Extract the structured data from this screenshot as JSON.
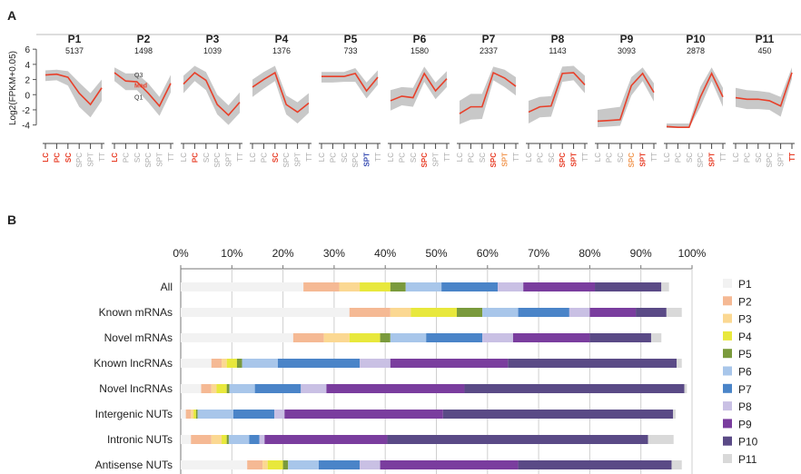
{
  "chart_data": [
    {
      "type": "line",
      "panel_label": "A",
      "ylabel": "Log2(FPKM+0.05)",
      "yticks": [
        "6",
        "4",
        "2",
        "0",
        "-2",
        "-4"
      ],
      "ylim": [
        -5,
        6.5
      ],
      "x": [
        "LC",
        "PC",
        "SC",
        "SPC",
        "SPT",
        "TT"
      ],
      "quartile_labels": [
        "Q3",
        "Med",
        "Q1"
      ],
      "panels": [
        {
          "name": "P1",
          "count": "5137",
          "median": [
            2.6,
            2.7,
            2.3,
            0.2,
            -1.3,
            0.9
          ],
          "q1": [
            1.8,
            1.9,
            1.2,
            -1.6,
            -3.0,
            -0.8
          ],
          "q3": [
            3.2,
            3.3,
            3.1,
            1.6,
            0.2,
            2.0
          ],
          "highlight": [
            {
              "label": "LC",
              "color": "#e8402a"
            },
            {
              "label": "PC",
              "color": "#e8402a"
            },
            {
              "label": "SC",
              "color": "#e8402a"
            }
          ]
        },
        {
          "name": "P2",
          "count": "1498",
          "median": [
            2.9,
            1.8,
            1.7,
            0.2,
            -1.5,
            1.5
          ],
          "q1": [
            1.8,
            0.6,
            0.6,
            -1.0,
            -2.8,
            0.3
          ],
          "q3": [
            3.6,
            2.8,
            2.8,
            1.5,
            -0.3,
            2.6
          ],
          "highlight": [
            {
              "label": "LC",
              "color": "#e8402a"
            }
          ]
        },
        {
          "name": "P3",
          "count": "1039",
          "median": [
            1.4,
            2.9,
            1.9,
            -1.3,
            -2.7,
            -1.0
          ],
          "q1": [
            0.2,
            1.8,
            0.6,
            -2.6,
            -4.0,
            -2.4
          ],
          "q3": [
            2.5,
            3.8,
            3.0,
            0.0,
            -1.4,
            0.3
          ],
          "highlight": [
            {
              "label": "PC",
              "color": "#e8402a"
            }
          ]
        },
        {
          "name": "P4",
          "count": "1376",
          "median": [
            1.0,
            2.0,
            2.9,
            -1.3,
            -2.3,
            -1.1
          ],
          "q1": [
            -0.3,
            0.8,
            1.8,
            -2.6,
            -3.8,
            -2.4
          ],
          "q3": [
            2.0,
            3.0,
            3.8,
            -0.1,
            -1.0,
            0.2
          ],
          "highlight": [
            {
              "label": "SC",
              "color": "#e8402a"
            }
          ]
        },
        {
          "name": "P5",
          "count": "733",
          "median": [
            2.4,
            2.4,
            2.4,
            2.8,
            0.5,
            2.3
          ],
          "q1": [
            1.6,
            1.6,
            1.7,
            1.7,
            -0.5,
            1.3
          ],
          "q3": [
            3.0,
            3.0,
            3.0,
            3.5,
            1.6,
            3.2
          ],
          "highlight": [
            {
              "label": "SPT",
              "color": "#3a4fb3"
            }
          ]
        },
        {
          "name": "P6",
          "count": "1580",
          "median": [
            -0.8,
            -0.2,
            -0.4,
            2.8,
            0.5,
            2.1
          ],
          "q1": [
            -2.1,
            -1.4,
            -1.6,
            1.7,
            -0.6,
            1.0
          ],
          "q3": [
            0.6,
            1.0,
            0.9,
            3.7,
            1.6,
            3.1
          ],
          "highlight": [
            {
              "label": "SPC",
              "color": "#e8402a"
            }
          ]
        },
        {
          "name": "P7",
          "count": "2337",
          "median": [
            -2.5,
            -1.6,
            -1.6,
            2.9,
            2.2,
            1.1
          ],
          "q1": [
            -3.9,
            -3.3,
            -3.2,
            1.9,
            1.0,
            -0.1
          ],
          "q3": [
            -0.8,
            0.1,
            0.1,
            3.7,
            3.3,
            2.3
          ],
          "highlight": [
            {
              "label": "SPC",
              "color": "#e8402a"
            },
            {
              "label": "SPT",
              "color": "#f29a56"
            }
          ]
        },
        {
          "name": "P8",
          "count": "1143",
          "median": [
            -2.3,
            -1.6,
            -1.5,
            2.8,
            2.9,
            1.3
          ],
          "q1": [
            -3.8,
            -3.0,
            -2.9,
            1.7,
            1.9,
            0.2
          ],
          "q3": [
            -0.8,
            -0.3,
            -0.2,
            3.7,
            3.8,
            2.5
          ],
          "highlight": [
            {
              "label": "SPC",
              "color": "#e8402a"
            },
            {
              "label": "SPT",
              "color": "#e8402a"
            }
          ]
        },
        {
          "name": "P9",
          "count": "3093",
          "median": [
            -3.5,
            -3.4,
            -3.3,
            1.2,
            2.8,
            0.3
          ],
          "q1": [
            -4.3,
            -4.2,
            -4.1,
            -0.1,
            1.8,
            -0.9
          ],
          "q3": [
            -2.0,
            -1.8,
            -1.6,
            2.3,
            3.6,
            1.5
          ],
          "highlight": [
            {
              "label": "SPC",
              "color": "#f29a56"
            },
            {
              "label": "SPT",
              "color": "#e8402a"
            }
          ]
        },
        {
          "name": "P10",
          "count": "2878",
          "median": [
            -4.2,
            -4.3,
            -4.3,
            -0.3,
            2.8,
            -0.3
          ],
          "q1": [
            -4.4,
            -4.4,
            -4.4,
            -1.6,
            1.8,
            -1.6
          ],
          "q3": [
            -3.8,
            -3.8,
            -3.8,
            1.0,
            3.6,
            0.9
          ],
          "highlight": [
            {
              "label": "SPT",
              "color": "#e8402a"
            }
          ]
        },
        {
          "name": "P11",
          "count": "450",
          "median": [
            -0.4,
            -0.6,
            -0.6,
            -0.8,
            -1.5,
            2.9
          ],
          "q1": [
            -1.6,
            -1.9,
            -1.9,
            -2.0,
            -2.9,
            2.1
          ],
          "q3": [
            0.9,
            0.6,
            0.5,
            0.3,
            -0.3,
            3.6
          ],
          "highlight": [
            {
              "label": "TT",
              "color": "#e8402a"
            }
          ]
        }
      ]
    },
    {
      "type": "bar",
      "orientation": "horizontal",
      "stacked": true,
      "panel_label": "B",
      "xticks": [
        "0%",
        "10%",
        "20%",
        "30%",
        "40%",
        "50%",
        "60%",
        "70%",
        "80%",
        "90%",
        "100%"
      ],
      "xlim": [
        0,
        100
      ],
      "grid": true,
      "legend_position": "right",
      "categories": [
        "All",
        "Known mRNAs",
        "Novel mRNAs",
        "Known lncRNAs",
        "Novel lncRNAs",
        "Intergenic NUTs",
        "Intronic NUTs",
        "Antisense NUTs"
      ],
      "series": [
        {
          "name": "P1",
          "color": "#f2f2f2",
          "values": [
            24,
            33,
            22,
            6,
            4,
            1,
            2,
            13
          ]
        },
        {
          "name": "P2",
          "color": "#f5b994",
          "values": [
            7,
            8,
            6,
            2,
            2,
            1,
            4,
            3
          ]
        },
        {
          "name": "P3",
          "color": "#fbd892",
          "values": [
            4,
            4,
            5,
            1,
            1,
            0.5,
            2,
            1
          ]
        },
        {
          "name": "P4",
          "color": "#e8e83c",
          "values": [
            6,
            9,
            6,
            2,
            2,
            0.5,
            1,
            3
          ]
        },
        {
          "name": "P5",
          "color": "#7a9a3c",
          "values": [
            3,
            5,
            2,
            1,
            0.5,
            0.3,
            0.4,
            1
          ]
        },
        {
          "name": "P6",
          "color": "#a8c6ea",
          "values": [
            7,
            7,
            7,
            7,
            5,
            7,
            4,
            6
          ]
        },
        {
          "name": "P7",
          "color": "#4a84c8",
          "values": [
            11,
            10,
            11,
            16,
            9,
            8,
            2,
            8
          ]
        },
        {
          "name": "P8",
          "color": "#c9c0e4",
          "values": [
            5,
            4,
            6,
            6,
            5,
            2,
            1,
            4
          ]
        },
        {
          "name": "P9",
          "color": "#7a3d9e",
          "values": [
            14,
            9,
            15,
            23,
            27,
            31,
            24,
            27
          ]
        },
        {
          "name": "P10",
          "color": "#5a4a86",
          "values": [
            13,
            6,
            12,
            33,
            43,
            45,
            51,
            30
          ]
        },
        {
          "name": "P11",
          "color": "#d9d9d9",
          "values": [
            1.5,
            3,
            2,
            1,
            0.5,
            0.5,
            5,
            2
          ]
        }
      ]
    }
  ]
}
